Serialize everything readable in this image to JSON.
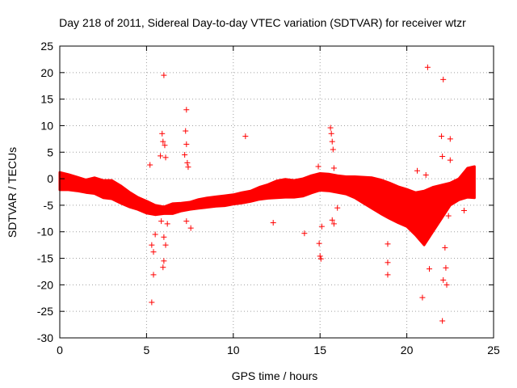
{
  "chart_data": {
    "type": "scatter",
    "title": "Day 218 of 2011, Sidereal Day-to-day VTEC variation (SDTVAR) for receiver wtzr",
    "xlabel": "GPS time / hours",
    "ylabel": "SDTVAR / TECUs",
    "xlim": [
      0,
      25
    ],
    "ylim": [
      -30,
      25
    ],
    "xticks": [
      0,
      5,
      10,
      15,
      20,
      25
    ],
    "yticks": [
      -30,
      -25,
      -20,
      -15,
      -10,
      -5,
      0,
      5,
      10,
      15,
      20,
      25
    ],
    "xtick_labels": [
      "0",
      "5",
      "10",
      "15",
      "20",
      "25"
    ],
    "ytick_labels": [
      "-30",
      "-25",
      "-20",
      "-15",
      "-10",
      "-5",
      "0",
      "5",
      "10",
      "15",
      "20",
      "25"
    ],
    "grid": true,
    "marker": "+",
    "color": "#ff0000",
    "series": [
      {
        "name": "SDTVAR",
        "band": {
          "x": [
            0.0,
            0.5,
            1.0,
            1.5,
            2.0,
            2.5,
            3.0,
            3.5,
            4.0,
            4.5,
            5.0,
            5.5,
            6.0,
            6.5,
            7.0,
            7.5,
            8.0,
            8.5,
            9.0,
            9.5,
            10.0,
            10.5,
            11.0,
            11.5,
            12.0,
            12.5,
            13.0,
            13.5,
            14.0,
            14.5,
            15.0,
            15.5,
            16.0,
            16.5,
            17.0,
            17.5,
            18.0,
            18.5,
            19.0,
            19.5,
            20.0,
            20.5,
            21.0,
            21.5,
            22.0,
            22.5,
            23.0,
            23.5,
            23.9
          ],
          "upper": [
            1.2,
            0.8,
            0.3,
            -0.2,
            0.2,
            -0.3,
            -0.3,
            -1.3,
            -2.5,
            -3.5,
            -4.2,
            -5.0,
            -5.3,
            -4.7,
            -4.6,
            -4.4,
            -3.9,
            -3.6,
            -3.4,
            -3.2,
            -3.0,
            -2.6,
            -2.3,
            -1.6,
            -1.1,
            -0.4,
            -0.1,
            -0.3,
            0.0,
            0.6,
            1.0,
            0.9,
            0.6,
            0.4,
            0.4,
            0.3,
            0.2,
            -0.2,
            -0.8,
            -1.5,
            -2.0,
            -2.6,
            -2.3,
            -1.6,
            -1.2,
            -0.8,
            0.0,
            2.0,
            2.3
          ],
          "lower": [
            -2.1,
            -2.1,
            -2.3,
            -2.6,
            -2.8,
            -3.6,
            -3.8,
            -4.6,
            -5.3,
            -5.8,
            -6.5,
            -6.8,
            -6.6,
            -6.6,
            -6.1,
            -5.8,
            -5.6,
            -5.4,
            -5.2,
            -5.1,
            -4.8,
            -4.6,
            -4.3,
            -3.9,
            -3.7,
            -3.6,
            -3.5,
            -3.5,
            -3.3,
            -2.7,
            -2.2,
            -2.3,
            -2.6,
            -2.9,
            -3.6,
            -4.6,
            -5.6,
            -6.6,
            -7.5,
            -8.3,
            -9.0,
            -10.6,
            -12.5,
            -10.0,
            -7.5,
            -5.0,
            -4.0,
            -3.5,
            -3.6
          ]
        },
        "points": [
          [
            5.3,
            -23.3
          ],
          [
            5.4,
            -18.1
          ],
          [
            5.2,
            2.6
          ],
          [
            5.3,
            -12.5
          ],
          [
            5.4,
            -13.8
          ],
          [
            5.5,
            -10.5
          ],
          [
            5.9,
            8.5
          ],
          [
            5.95,
            7.0
          ],
          [
            6.0,
            19.5
          ],
          [
            6.0,
            -15.5
          ],
          [
            5.95,
            -16.7
          ],
          [
            6.1,
            -12.5
          ],
          [
            6.05,
            6.3
          ],
          [
            6.1,
            4.0
          ],
          [
            5.8,
            4.3
          ],
          [
            5.85,
            -8.0
          ],
          [
            6.0,
            -11.0
          ],
          [
            6.2,
            -8.5
          ],
          [
            7.3,
            13.0
          ],
          [
            7.25,
            9.0
          ],
          [
            7.3,
            6.5
          ],
          [
            7.2,
            4.5
          ],
          [
            7.35,
            3.0
          ],
          [
            7.4,
            2.2
          ],
          [
            7.3,
            -8.0
          ],
          [
            7.55,
            -9.3
          ],
          [
            10.7,
            8.0
          ],
          [
            12.3,
            -8.3
          ],
          [
            14.1,
            -10.3
          ],
          [
            14.9,
            2.3
          ],
          [
            15.0,
            -14.6
          ],
          [
            15.05,
            -15.1
          ],
          [
            14.95,
            -12.2
          ],
          [
            15.1,
            -9.0
          ],
          [
            15.6,
            9.6
          ],
          [
            15.65,
            8.5
          ],
          [
            15.7,
            7.0
          ],
          [
            15.75,
            5.5
          ],
          [
            15.8,
            2.0
          ],
          [
            15.7,
            -7.8
          ],
          [
            15.8,
            -8.5
          ],
          [
            16.0,
            -5.5
          ],
          [
            16.85,
            0.0
          ],
          [
            18.9,
            -12.3
          ],
          [
            18.9,
            -15.8
          ],
          [
            18.9,
            -18.1
          ],
          [
            20.6,
            1.5
          ],
          [
            20.9,
            -22.4
          ],
          [
            21.1,
            0.7
          ],
          [
            21.2,
            21.0
          ],
          [
            21.3,
            -17.0
          ],
          [
            22.1,
            18.7
          ],
          [
            22.0,
            8.0
          ],
          [
            22.05,
            4.2
          ],
          [
            22.2,
            -13.0
          ],
          [
            22.25,
            -16.8
          ],
          [
            22.1,
            -19.1
          ],
          [
            22.3,
            -20.0
          ],
          [
            22.05,
            -26.8
          ],
          [
            22.5,
            7.5
          ],
          [
            22.5,
            3.5
          ],
          [
            22.4,
            -7.0
          ],
          [
            23.3,
            -6.0
          ]
        ]
      }
    ]
  }
}
